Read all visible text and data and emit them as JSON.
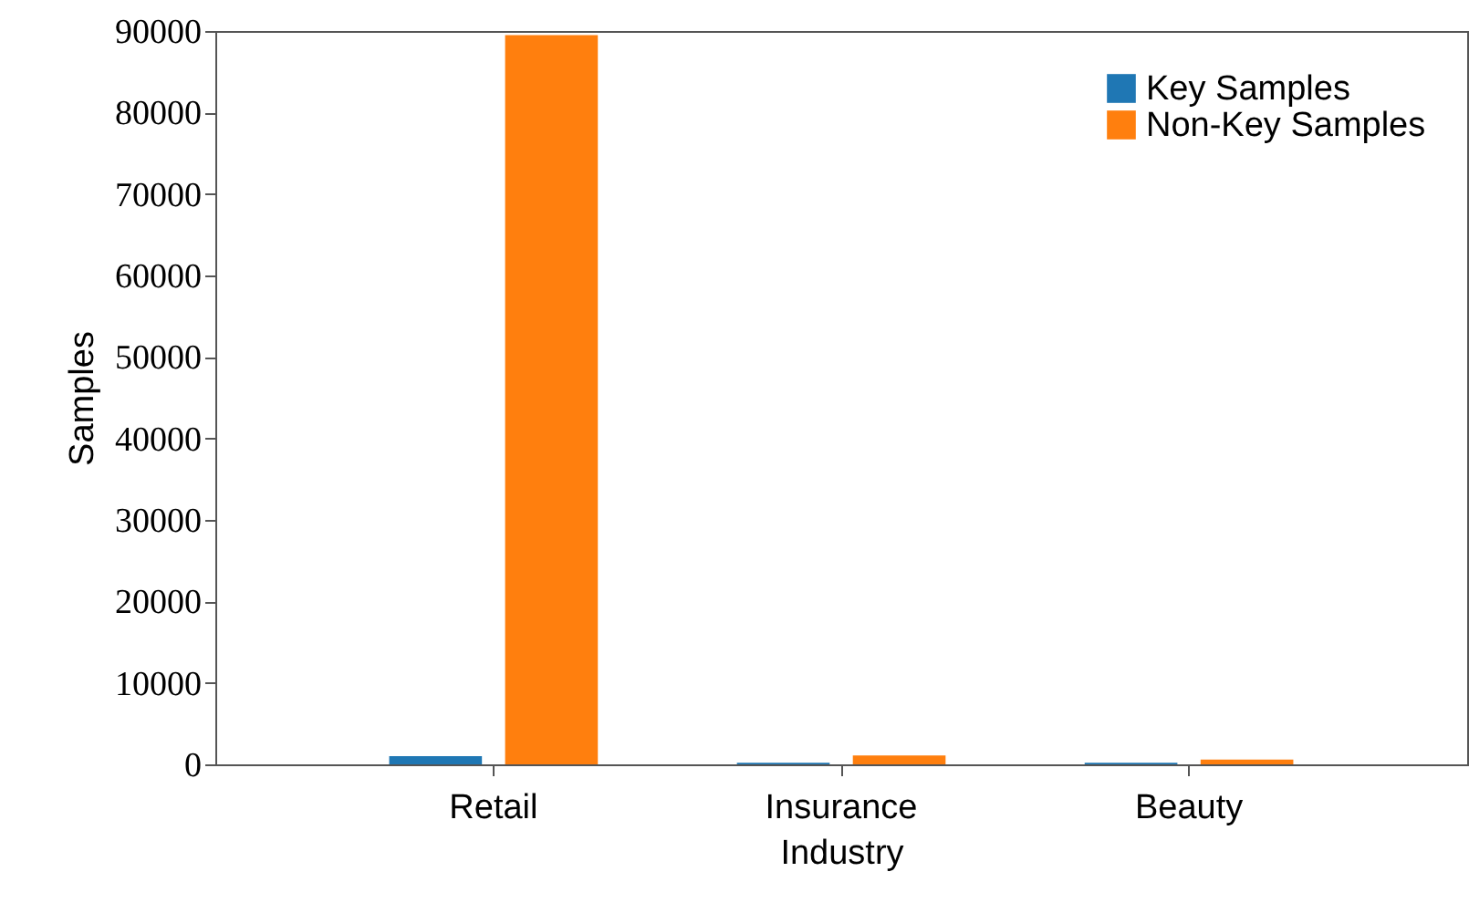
{
  "chart_data": {
    "type": "bar",
    "xlabel": "Industry",
    "ylabel": "Samples",
    "categories": [
      "Retail",
      "Insurance",
      "Beauty"
    ],
    "series": [
      {
        "name": "Key Samples",
        "color": "#1f77b4",
        "values": [
          1000,
          200,
          200
        ]
      },
      {
        "name": "Non-Key Samples",
        "color": "#ff7f0e",
        "values": [
          89500,
          1100,
          600
        ]
      }
    ],
    "ylim": [
      0,
      90000
    ],
    "yticks": [
      0,
      10000,
      20000,
      30000,
      40000,
      50000,
      60000,
      70000,
      80000,
      90000
    ],
    "grid": false,
    "legend": "top right"
  }
}
